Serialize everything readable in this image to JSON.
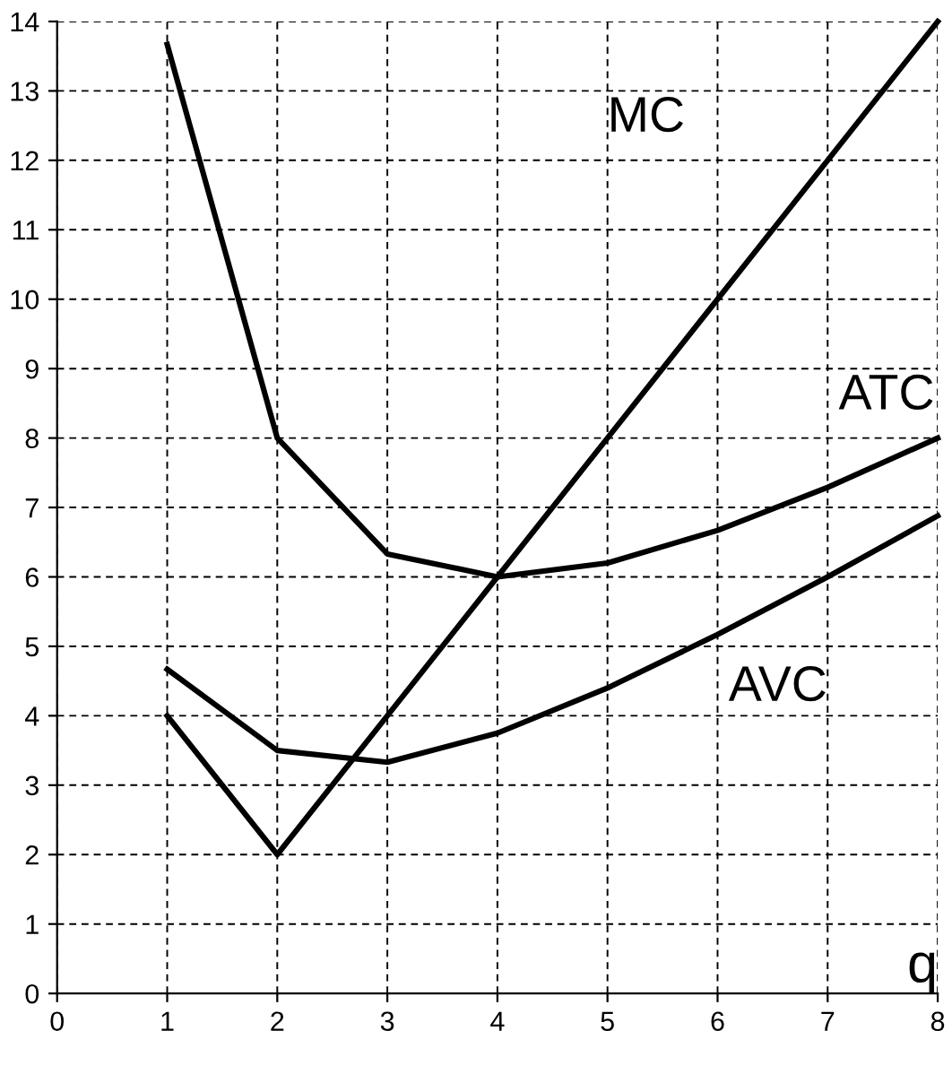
{
  "chart_data": {
    "type": "line",
    "xlabel": "q",
    "x": [
      1,
      2,
      3,
      4,
      5,
      6,
      7,
      8
    ],
    "series": [
      {
        "name": "MC",
        "color": "#000000",
        "values": [
          4,
          2,
          4,
          6,
          8,
          10,
          12,
          14
        ]
      },
      {
        "name": "ATC",
        "color": "#000000",
        "values": [
          13.67,
          8,
          6.33,
          6,
          6.2,
          6.67,
          7.29,
          8
        ]
      },
      {
        "name": "AVC",
        "color": "#000000",
        "values": [
          4.67,
          3.5,
          3.33,
          3.75,
          4.4,
          5.17,
          6,
          6.88
        ]
      }
    ],
    "xlim": [
      0,
      8
    ],
    "ylim": [
      0,
      14
    ],
    "xticks": [
      0,
      1,
      2,
      3,
      4,
      5,
      6,
      7,
      8
    ],
    "yticks": [
      0,
      1,
      2,
      3,
      4,
      5,
      6,
      7,
      8,
      9,
      10,
      11,
      12,
      13,
      14
    ],
    "grid": true,
    "line_style": "solid",
    "marker": "none",
    "legend": false
  }
}
